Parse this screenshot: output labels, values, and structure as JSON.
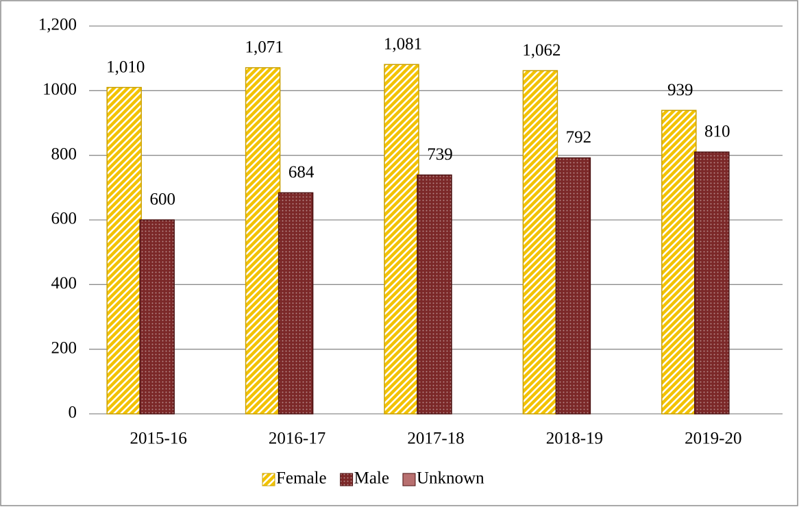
{
  "chart_data": {
    "type": "bar",
    "categories": [
      "2015-16",
      "2016-17",
      "2017-18",
      "2018-19",
      "2019-20"
    ],
    "series": [
      {
        "name": "Female",
        "color": "#f2c200",
        "values": [
          1010,
          1071,
          1081,
          1062,
          939
        ],
        "value_labels": [
          "1,010",
          "1,071",
          "1,081",
          "1,062",
          "939"
        ]
      },
      {
        "name": "Male",
        "color": "#7b2828",
        "values": [
          600,
          684,
          739,
          792,
          810
        ]
      },
      {
        "name": "Unknown",
        "color": "#b87070",
        "values": [
          0,
          0,
          0,
          0,
          0
        ]
      }
    ],
    "ylim": [
      0,
      1200
    ],
    "yticks": [
      0,
      200,
      400,
      600,
      800,
      1000,
      {
        "value": 1200,
        "label": "1,200"
      }
    ],
    "grid": true,
    "legend": "bottom"
  }
}
